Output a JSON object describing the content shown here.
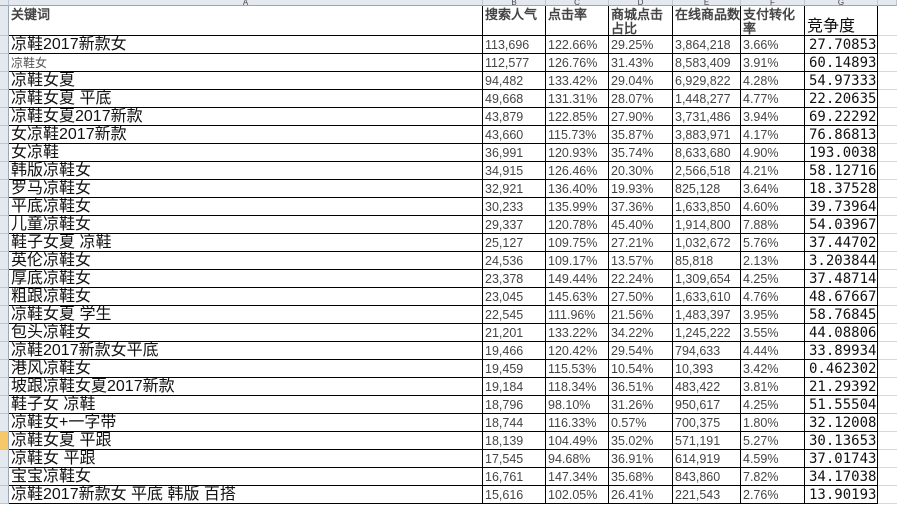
{
  "column_letters": [
    "A",
    "B",
    "C",
    "D",
    "E",
    "F",
    "G",
    ""
  ],
  "headers": [
    "关键词",
    "搜索人气",
    "点击率",
    "商城点击占比",
    "在线商品数",
    "支付转化率",
    "竞争度"
  ],
  "selected_row_index": 22,
  "rows": [
    [
      "凉鞋2017新款女",
      "113,696",
      "122.66%",
      "29.25%",
      "3,864,218",
      "3.66%",
      "27.70853"
    ],
    [
      "凉鞋女",
      "112,577",
      "126.76%",
      "31.43%",
      "8,583,409",
      "3.91%",
      "60.14893"
    ],
    [
      "凉鞋女夏",
      "94,482",
      "133.42%",
      "29.04%",
      "6,929,822",
      "4.28%",
      "54.97333"
    ],
    [
      "凉鞋女夏  平底",
      "49,668",
      "131.31%",
      "28.07%",
      "1,448,277",
      "4.77%",
      "22.20635"
    ],
    [
      "凉鞋女夏2017新款",
      "43,879",
      "122.85%",
      "27.90%",
      "3,731,486",
      "3.94%",
      "69.22292"
    ],
    [
      "女凉鞋2017新款",
      "43,660",
      "115.73%",
      "35.87%",
      "3,883,971",
      "4.17%",
      "76.86813"
    ],
    [
      "女凉鞋",
      "36,991",
      "120.93%",
      "35.74%",
      "8,633,680",
      "4.90%",
      "193.0038"
    ],
    [
      "韩版凉鞋女",
      "34,915",
      "126.46%",
      "20.30%",
      "2,566,518",
      "4.21%",
      "58.12716"
    ],
    [
      "罗马凉鞋女",
      "32,921",
      "136.40%",
      "19.93%",
      "825,128",
      "3.64%",
      "18.37528"
    ],
    [
      "平底凉鞋女",
      "30,233",
      "135.99%",
      "37.36%",
      "1,633,850",
      "4.60%",
      "39.73964"
    ],
    [
      "儿童凉鞋女",
      "29,337",
      "120.78%",
      "45.40%",
      "1,914,800",
      "7.88%",
      "54.03967"
    ],
    [
      "鞋子女夏  凉鞋",
      "25,127",
      "109.75%",
      "27.21%",
      "1,032,672",
      "5.76%",
      "37.44702"
    ],
    [
      "英伦凉鞋女",
      "24,536",
      "109.17%",
      "13.57%",
      "85,818",
      "2.13%",
      "3.203844"
    ],
    [
      "厚底凉鞋女",
      "23,378",
      "149.44%",
      "22.24%",
      "1,309,654",
      "4.25%",
      "37.48714"
    ],
    [
      "粗跟凉鞋女",
      "23,045",
      "145.63%",
      "27.50%",
      "1,633,610",
      "4.76%",
      "48.67667"
    ],
    [
      "凉鞋女夏  学生",
      "22,545",
      "111.96%",
      "21.56%",
      "1,483,397",
      "3.95%",
      "58.76845"
    ],
    [
      "包头凉鞋女",
      "21,201",
      "133.22%",
      "34.22%",
      "1,245,222",
      "3.55%",
      "44.08806"
    ],
    [
      "凉鞋2017新款女平底",
      "19,466",
      "120.42%",
      "29.54%",
      "794,633",
      "4.44%",
      "33.89934"
    ],
    [
      "港风凉鞋女",
      "19,459",
      "115.53%",
      "10.54%",
      "10,393",
      "3.42%",
      "0.462302"
    ],
    [
      "坡跟凉鞋女夏2017新款",
      "19,184",
      "118.34%",
      "36.51%",
      "483,422",
      "3.81%",
      "21.29392"
    ],
    [
      "鞋子女  凉鞋",
      "18,796",
      "98.10%",
      "31.26%",
      "950,617",
      "4.25%",
      "51.55504"
    ],
    [
      "凉鞋女+一字带",
      "18,744",
      "116.33%",
      "0.57%",
      "700,375",
      "1.80%",
      "32.12008"
    ],
    [
      "凉鞋女夏  平跟",
      "18,139",
      "104.49%",
      "35.02%",
      "571,191",
      "5.27%",
      "30.13653"
    ],
    [
      "凉鞋女  平跟",
      "17,545",
      "94.68%",
      "36.91%",
      "614,919",
      "4.59%",
      "37.01743"
    ],
    [
      "宝宝凉鞋女",
      "16,761",
      "147.34%",
      "35.68%",
      "843,860",
      "7.82%",
      "34.17038"
    ],
    [
      "凉鞋2017新款女  平底  韩版  百搭",
      "15,616",
      "102.05%",
      "26.41%",
      "221,543",
      "2.76%",
      "13.90193"
    ]
  ]
}
